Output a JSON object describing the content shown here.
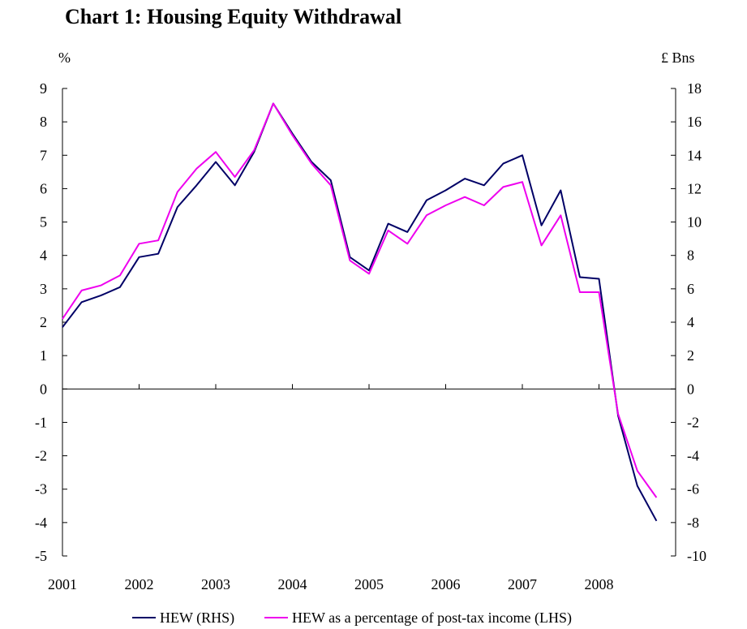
{
  "chart_data": {
    "type": "line",
    "title": "Chart 1: Housing Equity Withdrawal",
    "left_axis_unit": "%",
    "right_axis_unit": "£ Bns",
    "x_tick_labels": [
      "2001",
      "2002",
      "2003",
      "2004",
      "2005",
      "2006",
      "2007",
      "2008"
    ],
    "x": [
      "2001 Q1",
      "2001 Q2",
      "2001 Q3",
      "2001 Q4",
      "2002 Q1",
      "2002 Q2",
      "2002 Q3",
      "2002 Q4",
      "2003 Q1",
      "2003 Q2",
      "2003 Q3",
      "2003 Q4",
      "2004 Q1",
      "2004 Q2",
      "2004 Q3",
      "2004 Q4",
      "2005 Q1",
      "2005 Q2",
      "2005 Q3",
      "2005 Q4",
      "2006 Q1",
      "2006 Q2",
      "2006 Q3",
      "2006 Q4",
      "2007 Q1",
      "2007 Q2",
      "2007 Q3",
      "2007 Q4",
      "2008 Q1",
      "2008 Q2",
      "2008 Q3",
      "2008 Q4"
    ],
    "left_ylim": [
      -5,
      9
    ],
    "right_ylim": [
      -10,
      18
    ],
    "left_ticks": [
      9,
      8,
      7,
      6,
      5,
      4,
      3,
      2,
      1,
      0,
      -1,
      -2,
      -3,
      -4,
      -5
    ],
    "right_ticks": [
      18,
      16,
      14,
      12,
      10,
      8,
      6,
      4,
      2,
      0,
      -2,
      -4,
      -6,
      -8,
      -10
    ],
    "series": [
      {
        "name": "HEW (RHS)",
        "axis": "right",
        "color": "#000066",
        "values": [
          3.7,
          5.2,
          5.6,
          6.1,
          7.9,
          8.1,
          10.9,
          12.2,
          13.6,
          12.2,
          14.2,
          17.1,
          15.3,
          13.6,
          12.5,
          7.9,
          7.1,
          9.9,
          9.4,
          11.3,
          11.9,
          12.6,
          12.2,
          13.5,
          14.0,
          9.8,
          11.9,
          6.7,
          6.6,
          -1.6,
          -5.8,
          -7.9
        ]
      },
      {
        "name": "HEW as a percentage of post-tax income (LHS)",
        "axis": "left",
        "color": "#ee00ee",
        "values": [
          2.1,
          2.95,
          3.1,
          3.4,
          4.35,
          4.45,
          5.9,
          6.6,
          7.1,
          6.35,
          7.15,
          8.55,
          7.6,
          6.75,
          6.1,
          3.85,
          3.45,
          4.75,
          4.35,
          5.2,
          5.5,
          5.75,
          5.5,
          6.05,
          6.2,
          4.3,
          5.2,
          2.9,
          2.9,
          -0.75,
          -2.45,
          -3.25
        ]
      }
    ],
    "grid": false,
    "legend_position": "bottom"
  }
}
